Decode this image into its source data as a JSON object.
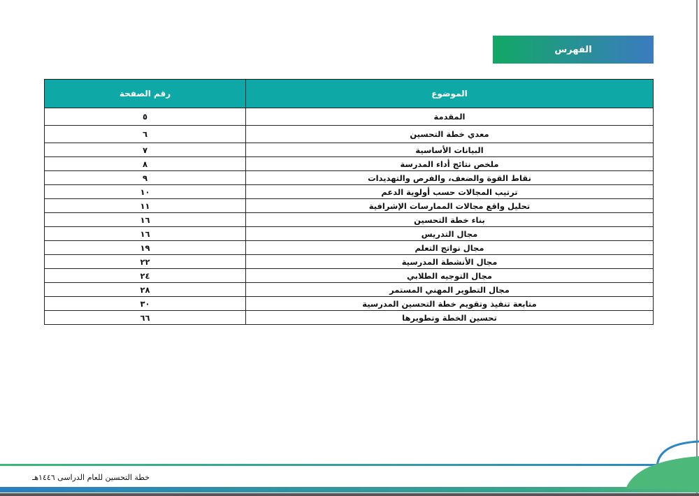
{
  "title": "الفهرس",
  "table": {
    "headers": {
      "topic": "الموضوع",
      "page": "رقم الصفحة"
    },
    "rows": [
      {
        "topic": "المقدمة",
        "page": "٥"
      },
      {
        "topic": "معدي خطة التحسين",
        "page": "٦"
      },
      {
        "topic": "البيانات الأساسية",
        "page": "٧"
      },
      {
        "topic": "ملخص نتائج أداء المدرسة",
        "page": "٨"
      },
      {
        "topic": "نقاط القوة والضعف، والفرص والتهديدات",
        "page": "٩"
      },
      {
        "topic": "ترتيب المجالات حسب أولوية الدعم",
        "page": "١٠"
      },
      {
        "topic": "تحليل واقع مجالات الممارسات الإشرافية",
        "page": "١١"
      },
      {
        "topic": "بناء خطة التحسين",
        "page": "١٦"
      },
      {
        "topic": "مجال التدريس",
        "page": "١٦"
      },
      {
        "topic": "مجال نواتج التعلم",
        "page": "١٩"
      },
      {
        "topic": "مجال الأنشطة المدرسية",
        "page": "٢٢"
      },
      {
        "topic": "مجال التوجيه الطلابي",
        "page": "٢٤"
      },
      {
        "topic": "مجال التطوير المهني المستمر",
        "page": "٢٨"
      },
      {
        "topic": "متابعة تنفيذ وتقويم خطة التحسين المدرسية",
        "page": "٣٠"
      },
      {
        "topic": "تحسين الخطة وتطويرها",
        "page": "٦٦"
      }
    ]
  },
  "footer": {
    "text": "خطة التحسين للعام الدراسى ١٤٤٦هـ"
  },
  "colors": {
    "header": "#0ea8a6",
    "title_gradient_start": "#12a865",
    "title_gradient_end": "#3b7bc0"
  }
}
